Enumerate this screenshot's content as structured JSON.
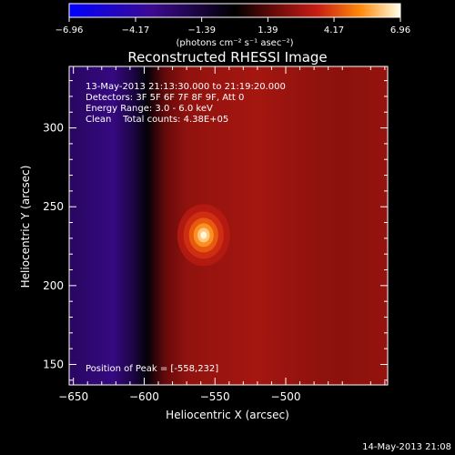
{
  "chart_data": {
    "type": "heatmap",
    "title": "Reconstructed RHESSI Image",
    "xlabel": "Heliocentric X (arcsec)",
    "ylabel": "Heliocentric Y (arcsec)",
    "xlim": [
      -653,
      -428
    ],
    "ylim": [
      137,
      339
    ],
    "x_ticks": [
      -650,
      -600,
      -550,
      -500
    ],
    "y_ticks": [
      150,
      200,
      250,
      300
    ],
    "colorbar": {
      "label": "(photons cm⁻² s⁻¹ asec⁻²)",
      "range": [
        -6.96,
        6.96
      ],
      "ticks": [
        -6.96,
        -4.17,
        -1.39,
        1.39,
        4.17,
        6.96
      ]
    },
    "annotations": [
      "13-May-2013 21:13:30.000 to 21:19:20.000",
      "Detectors: 3F 5F 6F 7F 8F 9F, Att 0",
      "Energy Range: 3.0 - 6.0 keV",
      "Clean    Total counts: 4.38E+05"
    ],
    "peak_label": "Position of Peak = [-558,232]",
    "peak": {
      "x": -558,
      "y": 232,
      "value": 6.96
    },
    "background_profile": {
      "x": [
        -653,
        -635,
        -622,
        -608,
        -598,
        -585,
        -570,
        -550,
        -520,
        -490,
        -460,
        -428
      ],
      "value": [
        -2.3,
        -2.8,
        -3.1,
        -1.7,
        -0.2,
        1.6,
        2.4,
        2.6,
        2.8,
        2.5,
        2.3,
        2.5
      ]
    },
    "footer": "14-May-2013 21:08"
  }
}
